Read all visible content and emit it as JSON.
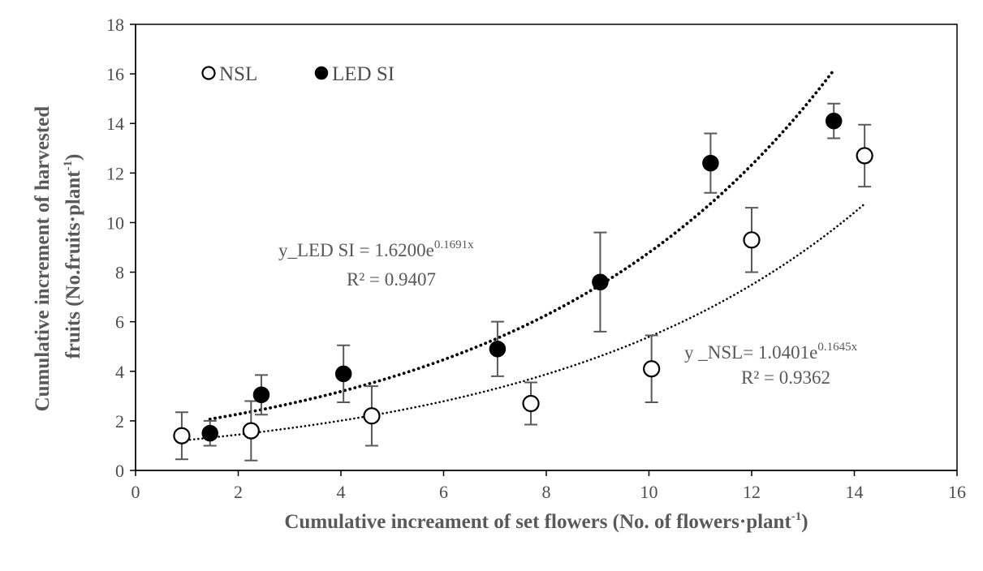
{
  "chart_data": {
    "type": "scatter",
    "xlabel_main": "Cumulative increament of set flowers (No. of flowers·plant",
    "xlabel_sup": "-1",
    "xlabel_end": ")",
    "ylabel_line1": "Cumulative increment of  harvested",
    "ylabel_line2_main": "fruits (No.fruits·plant",
    "ylabel_line2_sup": "-1",
    "ylabel_line2_end": ")",
    "xlim": [
      0,
      16
    ],
    "ylim": [
      0,
      18
    ],
    "x_ticks": [
      "0",
      "2",
      "4",
      "6",
      "8",
      "10",
      "12",
      "14",
      "16"
    ],
    "y_ticks": [
      "0",
      "2",
      "4",
      "6",
      "8",
      "10",
      "12",
      "14",
      "16",
      "18"
    ],
    "legend_position": "top-left",
    "series": [
      {
        "name": "NSL",
        "marker": "open-circle",
        "x": [
          0.9,
          2.25,
          4.6,
          7.7,
          10.05,
          12.0,
          14.2
        ],
        "y": [
          1.4,
          1.6,
          2.2,
          2.7,
          4.1,
          9.3,
          12.7
        ],
        "error": [
          0.95,
          1.2,
          1.2,
          0.85,
          1.35,
          1.3,
          1.25
        ],
        "trendline": {
          "type": "exponential",
          "a": 1.0401,
          "b": 0.1645,
          "x_range": [
            0.9,
            14.2
          ]
        },
        "equation_main": "y _NSL= 1.0401e",
        "equation_exp": "0.1645x",
        "r2": "R² = 0.9362"
      },
      {
        "name": "LED SI",
        "marker": "filled-circle",
        "x": [
          1.45,
          2.45,
          4.05,
          7.05,
          9.05,
          11.2,
          13.6
        ],
        "y": [
          1.5,
          3.05,
          3.9,
          4.9,
          7.6,
          12.4,
          14.1
        ],
        "error": [
          0.5,
          0.8,
          1.15,
          1.1,
          2.0,
          1.2,
          0.7
        ],
        "trendline": {
          "type": "exponential",
          "a": 1.62,
          "b": 0.1691,
          "x_range": [
            1.45,
            13.6
          ]
        },
        "equation_main": "y_LED SI = 1.6200e",
        "equation_exp": "0.1691x",
        "r2": "R² = 0.9407"
      }
    ]
  }
}
